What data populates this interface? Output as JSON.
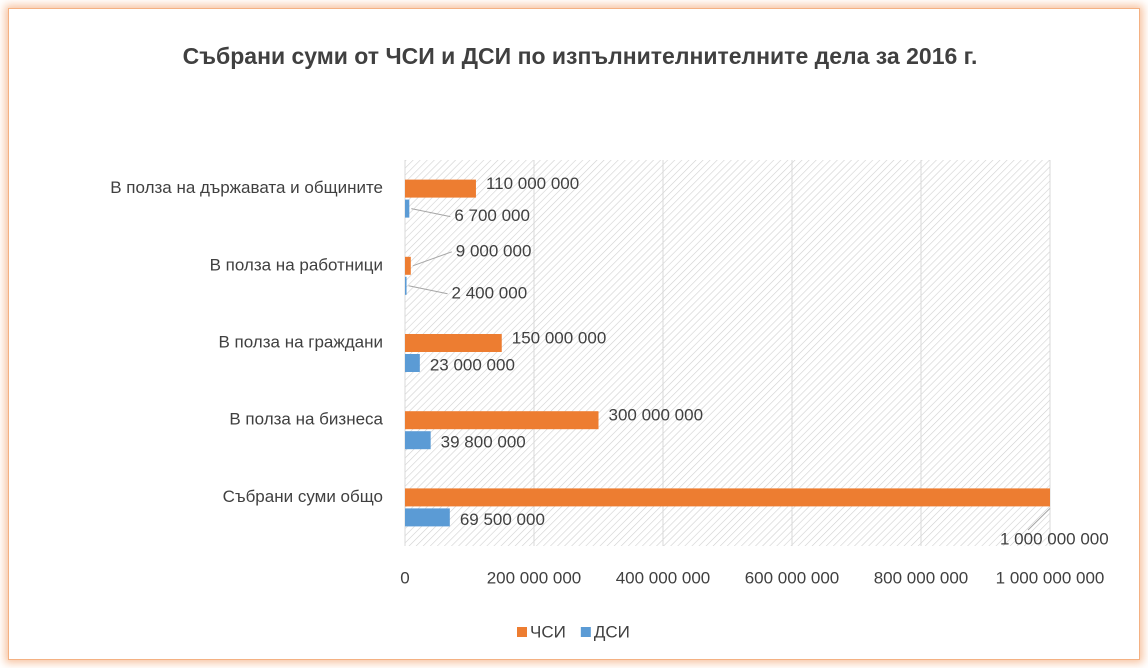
{
  "chart_data": {
    "type": "bar",
    "orientation": "horizontal",
    "title": "Събрани суми от ЧСИ и ДСИ по изпълнителнителните дела за 2016 г.",
    "categories": [
      "В полза на държавата и общините",
      "В полза на работници",
      "В полза на граждани",
      "В полза на бизнеса",
      "Събрани суми общо"
    ],
    "series": [
      {
        "name": "ЧСИ",
        "color": "#ed7d31",
        "values": [
          110000000,
          9000000,
          150000000,
          300000000,
          1000000000
        ],
        "value_labels": [
          "110 000 000",
          "9 000 000",
          "150 000 000",
          "300 000 000",
          "1 000 000 000"
        ]
      },
      {
        "name": "ДСИ",
        "color": "#5b9bd5",
        "values": [
          6700000,
          2400000,
          23000000,
          39800000,
          69500000
        ],
        "value_labels": [
          "6 700 000",
          "2 400 000",
          "23 000 000",
          "39 800 000",
          "69 500 000"
        ]
      }
    ],
    "xlim": [
      0,
      1000000000
    ],
    "xticks": [
      0,
      {
        "value": 200000000,
        "label": "200 000 000"
      },
      {
        "value": 400000000,
        "label": "400 000 000"
      },
      {
        "value": 600000000,
        "label": "600 000 000"
      },
      {
        "value": 800000000,
        "label": "800 000 000"
      },
      {
        "value": 1000000000,
        "label": "1 000 000 000"
      }
    ],
    "grid": true,
    "legend": "bottom"
  }
}
